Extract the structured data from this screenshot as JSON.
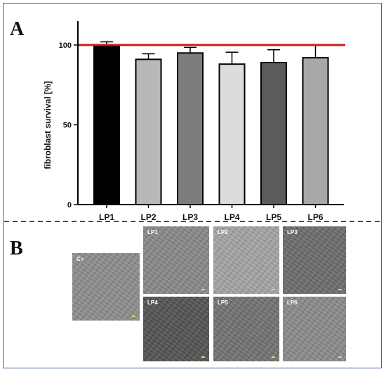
{
  "panel_labels": {
    "a": "A",
    "b": "B"
  },
  "chart_data": {
    "type": "bar",
    "categories": [
      "LP1",
      "LP2",
      "LP3",
      "LP4",
      "LP5",
      "LP6"
    ],
    "values": [
      99,
      91,
      95,
      88,
      89,
      92
    ],
    "errors": [
      3,
      3.5,
      3.5,
      7.5,
      8,
      8
    ],
    "bar_colors": [
      "#000000",
      "#b8b8b8",
      "#7c7c7c",
      "#dcdcdc",
      "#5b5b5b",
      "#a8a8a8"
    ],
    "reference_line": {
      "value": 100,
      "color": "#cc1a1a"
    },
    "ylabel": "fibroblast survival [%]",
    "xlabel": "",
    "title": "",
    "yticks": [
      0,
      50,
      100
    ],
    "ylim": [
      0,
      115
    ],
    "grid": false,
    "legend": "none"
  },
  "micrographs": [
    {
      "label": "C+",
      "tone": "#8f8f8f"
    },
    {
      "label": "LP1",
      "tone": "#8a8a8a"
    },
    {
      "label": "LP2",
      "tone": "#a6a6a6"
    },
    {
      "label": "LP3",
      "tone": "#6e6e6e"
    },
    {
      "label": "LP4",
      "tone": "#555555"
    },
    {
      "label": "LP5",
      "tone": "#747474"
    },
    {
      "label": "LP6",
      "tone": "#8c8c8c"
    }
  ]
}
